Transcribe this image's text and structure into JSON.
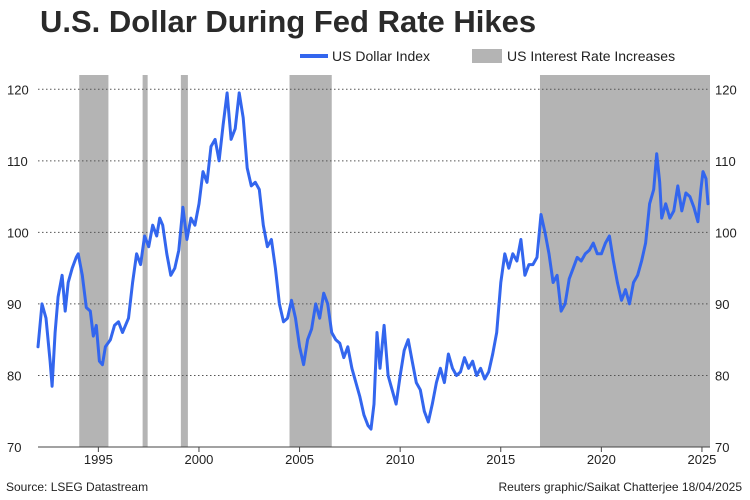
{
  "chart_data": {
    "type": "line",
    "title": "U.S. Dollar During Fed Rate Hikes",
    "legend": {
      "placement": "top-right",
      "line_label": "US Dollar Index",
      "band_label": "US Interest Rate Increases"
    },
    "colors": {
      "line": "#3366ee",
      "band": "#b4b4b4",
      "grid": "#555555"
    },
    "xlim": [
      1992.0,
      2025.4
    ],
    "ylim": [
      70,
      122
    ],
    "xticks": [
      1995,
      2000,
      2005,
      2010,
      2015,
      2020,
      2025
    ],
    "yticks": [
      70,
      80,
      90,
      100,
      110,
      120
    ],
    "grid": {
      "horizontal": true,
      "style": "dotted"
    },
    "bands": [
      {
        "start": 1994.05,
        "end": 1995.5
      },
      {
        "start": 1997.2,
        "end": 1997.45
      },
      {
        "start": 1999.1,
        "end": 1999.45
      },
      {
        "start": 2004.5,
        "end": 2006.6
      },
      {
        "start": 2016.95,
        "end": 2025.4
      }
    ],
    "series": [
      {
        "name": "US Dollar Index",
        "points": [
          [
            1992.0,
            84
          ],
          [
            1992.2,
            90
          ],
          [
            1992.4,
            88
          ],
          [
            1992.6,
            82
          ],
          [
            1992.7,
            78.5
          ],
          [
            1992.85,
            86
          ],
          [
            1993.0,
            91
          ],
          [
            1993.2,
            94
          ],
          [
            1993.35,
            89
          ],
          [
            1993.5,
            93
          ],
          [
            1993.7,
            95
          ],
          [
            1993.9,
            96.5
          ],
          [
            1994.0,
            97
          ],
          [
            1994.2,
            94
          ],
          [
            1994.4,
            89.5
          ],
          [
            1994.6,
            89
          ],
          [
            1994.75,
            85.5
          ],
          [
            1994.9,
            87
          ],
          [
            1995.05,
            82
          ],
          [
            1995.2,
            81.5
          ],
          [
            1995.35,
            84
          ],
          [
            1995.6,
            85
          ],
          [
            1995.8,
            87
          ],
          [
            1996.0,
            87.5
          ],
          [
            1996.2,
            86
          ],
          [
            1996.5,
            88
          ],
          [
            1996.7,
            93
          ],
          [
            1996.9,
            97
          ],
          [
            1997.1,
            95.5
          ],
          [
            1997.3,
            99.5
          ],
          [
            1997.5,
            98
          ],
          [
            1997.7,
            101
          ],
          [
            1997.9,
            99.5
          ],
          [
            1998.05,
            102
          ],
          [
            1998.2,
            101
          ],
          [
            1998.4,
            97
          ],
          [
            1998.6,
            94
          ],
          [
            1998.8,
            95
          ],
          [
            1999.0,
            97.5
          ],
          [
            1999.2,
            103.5
          ],
          [
            1999.4,
            99
          ],
          [
            1999.6,
            102
          ],
          [
            1999.8,
            101
          ],
          [
            2000.0,
            104
          ],
          [
            2000.2,
            108.5
          ],
          [
            2000.4,
            107
          ],
          [
            2000.6,
            112
          ],
          [
            2000.8,
            113
          ],
          [
            2001.0,
            110
          ],
          [
            2001.2,
            115
          ],
          [
            2001.4,
            119.5
          ],
          [
            2001.6,
            113
          ],
          [
            2001.8,
            114.5
          ],
          [
            2002.0,
            119.5
          ],
          [
            2002.2,
            116
          ],
          [
            2002.4,
            109
          ],
          [
            2002.6,
            106.5
          ],
          [
            2002.8,
            107
          ],
          [
            2003.0,
            106
          ],
          [
            2003.2,
            101
          ],
          [
            2003.4,
            98
          ],
          [
            2003.6,
            99
          ],
          [
            2003.8,
            95
          ],
          [
            2004.0,
            90
          ],
          [
            2004.2,
            87.5
          ],
          [
            2004.4,
            88
          ],
          [
            2004.6,
            90.5
          ],
          [
            2004.8,
            88
          ],
          [
            2005.0,
            84
          ],
          [
            2005.2,
            81.5
          ],
          [
            2005.4,
            85
          ],
          [
            2005.6,
            86.5
          ],
          [
            2005.8,
            90
          ],
          [
            2006.0,
            88
          ],
          [
            2006.2,
            91.5
          ],
          [
            2006.4,
            90
          ],
          [
            2006.6,
            86
          ],
          [
            2006.8,
            85
          ],
          [
            2007.0,
            84.5
          ],
          [
            2007.2,
            82.5
          ],
          [
            2007.4,
            84
          ],
          [
            2007.6,
            81
          ],
          [
            2007.8,
            79
          ],
          [
            2008.0,
            77
          ],
          [
            2008.2,
            74.5
          ],
          [
            2008.4,
            73
          ],
          [
            2008.55,
            72.5
          ],
          [
            2008.7,
            76
          ],
          [
            2008.85,
            86
          ],
          [
            2009.0,
            81
          ],
          [
            2009.2,
            87
          ],
          [
            2009.4,
            80
          ],
          [
            2009.6,
            78
          ],
          [
            2009.8,
            76
          ],
          [
            2010.0,
            80
          ],
          [
            2010.2,
            83.5
          ],
          [
            2010.4,
            85
          ],
          [
            2010.6,
            82
          ],
          [
            2010.8,
            79
          ],
          [
            2011.0,
            78
          ],
          [
            2011.2,
            75
          ],
          [
            2011.4,
            73.5
          ],
          [
            2011.6,
            76
          ],
          [
            2011.8,
            79
          ],
          [
            2012.0,
            81
          ],
          [
            2012.2,
            79
          ],
          [
            2012.4,
            83
          ],
          [
            2012.6,
            81
          ],
          [
            2012.8,
            80
          ],
          [
            2013.0,
            80.5
          ],
          [
            2013.2,
            82.5
          ],
          [
            2013.4,
            81
          ],
          [
            2013.6,
            82
          ],
          [
            2013.8,
            80
          ],
          [
            2014.0,
            81
          ],
          [
            2014.2,
            79.5
          ],
          [
            2014.4,
            80.5
          ],
          [
            2014.6,
            83
          ],
          [
            2014.8,
            86
          ],
          [
            2015.0,
            93
          ],
          [
            2015.2,
            97
          ],
          [
            2015.4,
            95
          ],
          [
            2015.6,
            97
          ],
          [
            2015.8,
            96
          ],
          [
            2016.0,
            99
          ],
          [
            2016.2,
            94
          ],
          [
            2016.4,
            95.5
          ],
          [
            2016.6,
            95.5
          ],
          [
            2016.8,
            96.5
          ],
          [
            2017.0,
            102.5
          ],
          [
            2017.2,
            100
          ],
          [
            2017.4,
            97
          ],
          [
            2017.6,
            93
          ],
          [
            2017.8,
            94
          ],
          [
            2018.0,
            89
          ],
          [
            2018.2,
            90
          ],
          [
            2018.4,
            93.5
          ],
          [
            2018.6,
            95
          ],
          [
            2018.8,
            96.5
          ],
          [
            2019.0,
            96
          ],
          [
            2019.2,
            97
          ],
          [
            2019.4,
            97.5
          ],
          [
            2019.6,
            98.5
          ],
          [
            2019.8,
            97
          ],
          [
            2020.0,
            97
          ],
          [
            2020.2,
            98.5
          ],
          [
            2020.4,
            99.5
          ],
          [
            2020.6,
            96
          ],
          [
            2020.8,
            93
          ],
          [
            2021.0,
            90.5
          ],
          [
            2021.2,
            92
          ],
          [
            2021.4,
            90
          ],
          [
            2021.6,
            93
          ],
          [
            2021.8,
            94
          ],
          [
            2022.0,
            96
          ],
          [
            2022.2,
            98.5
          ],
          [
            2022.4,
            104
          ],
          [
            2022.6,
            106
          ],
          [
            2022.75,
            111
          ],
          [
            2022.9,
            107
          ],
          [
            2023.0,
            102
          ],
          [
            2023.2,
            104
          ],
          [
            2023.4,
            102
          ],
          [
            2023.6,
            103
          ],
          [
            2023.8,
            106.5
          ],
          [
            2024.0,
            103
          ],
          [
            2024.2,
            105.5
          ],
          [
            2024.4,
            105
          ],
          [
            2024.6,
            103.5
          ],
          [
            2024.8,
            101.5
          ],
          [
            2024.95,
            106
          ],
          [
            2025.05,
            108.5
          ],
          [
            2025.2,
            107.5
          ],
          [
            2025.3,
            104
          ]
        ]
      }
    ],
    "source": "Source:  LSEG Datastream",
    "credit": "Reuters graphic/Saikat Chatterjee 18/04/2025"
  }
}
